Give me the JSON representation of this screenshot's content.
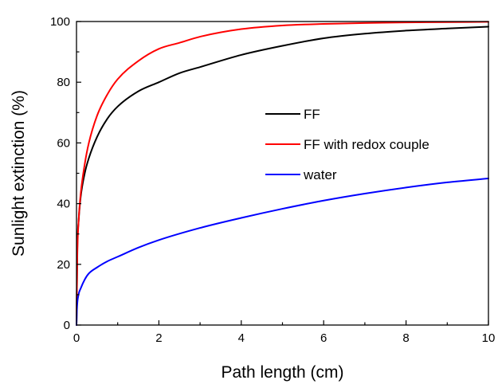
{
  "chart_data": {
    "type": "line",
    "xlabel": "Path length (cm)",
    "ylabel": "Sunlight extinction (%)",
    "xlim": [
      0,
      10
    ],
    "ylim": [
      0,
      100
    ],
    "xticks": [
      0,
      2,
      4,
      6,
      8,
      10
    ],
    "yticks": [
      0,
      20,
      40,
      60,
      80,
      100
    ],
    "grid": false,
    "legend_position": "center-right",
    "series": [
      {
        "name": "FF",
        "color": "#000000",
        "x": [
          0,
          0.02,
          0.05,
          0.1,
          0.2,
          0.3,
          0.5,
          0.75,
          1,
          1.5,
          2,
          2.5,
          3,
          4,
          5,
          6,
          7,
          8,
          9,
          10
        ],
        "y": [
          0,
          25,
          34,
          42,
          50,
          55,
          62,
          68,
          72,
          77,
          80,
          83,
          85,
          89,
          92,
          94.5,
          96,
          97,
          97.7,
          98.3
        ]
      },
      {
        "name": "FF with redox couple",
        "color": "#ff0000",
        "x": [
          0,
          0.02,
          0.05,
          0.1,
          0.2,
          0.3,
          0.5,
          0.75,
          1,
          1.5,
          2,
          2.5,
          3,
          4,
          5,
          6,
          7,
          8,
          9,
          10
        ],
        "y": [
          0,
          23,
          34,
          43,
          53,
          60,
          69,
          76,
          81,
          87,
          91,
          93,
          95,
          97.5,
          98.7,
          99.2,
          99.5,
          99.7,
          99.8,
          99.9
        ]
      },
      {
        "name": "water",
        "color": "#0000ff",
        "x": [
          0,
          0.01,
          0.05,
          0.1,
          0.2,
          0.3,
          0.5,
          0.75,
          1,
          1.5,
          2,
          3,
          4,
          5,
          6,
          7,
          8,
          9,
          10
        ],
        "y": [
          0,
          5,
          10,
          12,
          15,
          17,
          19,
          21,
          22.5,
          25.5,
          28,
          32,
          35.3,
          38.3,
          41,
          43.3,
          45.3,
          47,
          48.3
        ]
      }
    ]
  }
}
